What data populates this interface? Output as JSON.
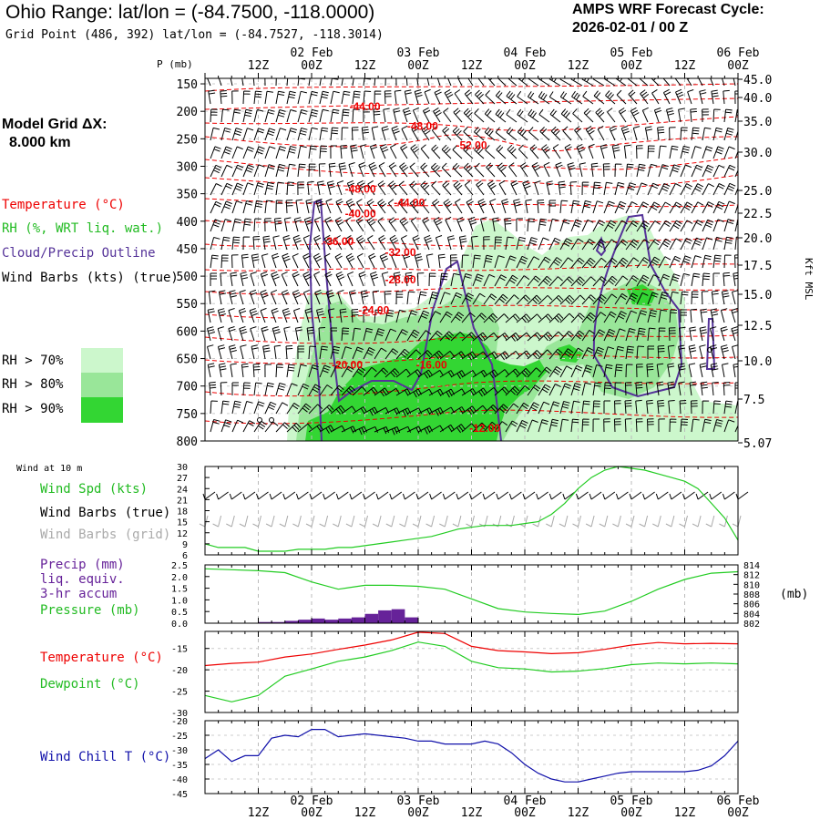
{
  "header": {
    "title": "Ohio Range:  lat/lon = (-84.7500, -118.0000)",
    "grid_point": "Grid Point (486, 392) lat/lon = (-84.7527, -118.3014)",
    "cycle_line1": "AMPS WRF Forecast Cycle:",
    "cycle_line2": "2026-02-01 / 00  Z"
  },
  "sidebar": {
    "grid_dx_line1": "Model Grid ΔX:",
    "grid_dx_line2": "8.000 km",
    "legend_temperature": "Temperature (°C)",
    "legend_rh": "RH (%, WRT liq. wat.)",
    "legend_cloud": "Cloud/Precip Outline",
    "legend_wind": "Wind Barbs (kts) (true)",
    "rh_keys": [
      "RH > 70%",
      "RH > 80%",
      "RH > 90%"
    ]
  },
  "colors": {
    "temperature": "#ee0000",
    "rh70": "#ccf7cc",
    "rh80": "#99e699",
    "rh90": "#33d633",
    "cloud": "#553399",
    "green_line": "#22cc22",
    "grid_barbs": "#aaaaaa",
    "precip": "#662299",
    "windchill": "#1111aa"
  },
  "time_axis": {
    "labels": [
      "12Z",
      "00Z",
      "12Z",
      "00Z",
      "12Z",
      "00Z",
      "12Z",
      "00Z",
      "12Z",
      "00Z"
    ],
    "dates": [
      "02 Feb",
      "03 Feb",
      "04 Feb",
      "05 Feb",
      "06 Feb"
    ]
  },
  "chart_data": [
    {
      "type": "heatmap",
      "panel": "cross-section",
      "y_axis_title": "P (mb)",
      "pressure_ticks": [
        "150",
        "200",
        "250",
        "300",
        "350",
        "400",
        "450",
        "500",
        "550",
        "600",
        "650",
        "700",
        "750",
        "800"
      ],
      "right_axis_title": "Kft MSL",
      "height_ticks": [
        "45.0",
        "40.0",
        "35.0",
        "30.0",
        "25.0",
        "22.5",
        "20.0",
        "17.5",
        "15.0",
        "12.5",
        "10.0",
        "7.5",
        "5.07"
      ],
      "temperature_labels": [
        {
          "text": "-44.00",
          "hour": 36,
          "p": 190
        },
        {
          "text": "-48.00",
          "hour": 49,
          "p": 225
        },
        {
          "text": "-52.00",
          "hour": 60,
          "p": 260
        },
        {
          "text": "-48.00",
          "hour": 35,
          "p": 340
        },
        {
          "text": "-44.00",
          "hour": 46,
          "p": 365
        },
        {
          "text": "-40.00",
          "hour": 35,
          "p": 385
        },
        {
          "text": "-36.00",
          "hour": 30,
          "p": 435
        },
        {
          "text": "-32.00",
          "hour": 44,
          "p": 455
        },
        {
          "text": "-28.00",
          "hour": 44,
          "p": 505
        },
        {
          "text": "-24.00",
          "hour": 38,
          "p": 560
        },
        {
          "text": "-20.00",
          "hour": 32,
          "p": 660
        },
        {
          "text": "-16.00",
          "hour": 51,
          "p": 660
        },
        {
          "text": "-12.00",
          "hour": 63,
          "p": 775
        }
      ]
    },
    {
      "type": "line",
      "panel": "wind",
      "title": "Wind at 10 m",
      "legend": [
        "Wind Spd (kts)",
        "Wind Barbs (true)",
        "Wind Barbs (grid)"
      ],
      "y_ticks": [
        "30",
        "27",
        "24",
        "21",
        "18",
        "15",
        "12",
        "9",
        "6"
      ],
      "ylim": [
        6,
        30
      ],
      "hours": [
        0,
        3,
        6,
        9,
        12,
        15,
        18,
        21,
        24,
        27,
        30,
        33,
        36,
        39,
        42,
        45,
        48,
        51,
        54,
        57,
        60,
        63,
        66,
        69,
        72,
        75,
        78,
        81,
        84,
        87,
        90,
        93,
        96,
        99,
        102,
        105,
        108,
        111,
        114,
        117,
        120
      ],
      "series": [
        {
          "name": "Wind Spd (kts)",
          "values": [
            9,
            8,
            8,
            8,
            7,
            7,
            7,
            7.5,
            7.5,
            7.5,
            8,
            8,
            8.5,
            9,
            9.5,
            10,
            10.5,
            11,
            12,
            13,
            13.5,
            14,
            14,
            14,
            14.5,
            15,
            17,
            20,
            24,
            27,
            29,
            30,
            29.5,
            29,
            28,
            27,
            26,
            24,
            20,
            16,
            10
          ]
        }
      ]
    },
    {
      "type": "bar",
      "panel": "precip-pressure",
      "legend": [
        "Precip (mm)",
        "liq. equiv.",
        "3-hr accum",
        "Pressure (mb)"
      ],
      "y_ticks_left": [
        "2.5",
        "2.0",
        "1.5",
        "1.0",
        "0.5",
        "0.0"
      ],
      "ylim_left": [
        0,
        2.5
      ],
      "y_ticks_right": [
        "814",
        "812",
        "810",
        "808",
        "806",
        "804",
        "802"
      ],
      "ylim_right": [
        802,
        814
      ],
      "right_axis_title": "(mb)",
      "precip_hours": [
        15,
        18,
        21,
        24,
        27,
        30,
        33,
        36,
        39,
        42,
        45,
        48
      ],
      "precip_values": [
        0.05,
        0.05,
        0.1,
        0.15,
        0.2,
        0.15,
        0.2,
        0.25,
        0.4,
        0.55,
        0.6,
        0.25
      ],
      "pressure_hours": [
        0,
        6,
        12,
        18,
        24,
        30,
        36,
        42,
        48,
        54,
        60,
        66,
        72,
        78,
        84,
        90,
        96,
        102,
        108,
        114,
        120
      ],
      "pressure_values": [
        813.2,
        813.0,
        812.8,
        812.4,
        810.5,
        809.0,
        809.8,
        809.8,
        809.6,
        809.0,
        807.0,
        805.0,
        804.3,
        804.0,
        803.8,
        804.5,
        806.5,
        809.0,
        811.0,
        812.3,
        812.6
      ]
    },
    {
      "type": "line",
      "panel": "temperature",
      "legend": [
        "Temperature (°C)",
        "Dewpoint (°C)"
      ],
      "y_ticks": [
        "-15",
        "-20",
        "-25",
        "-30"
      ],
      "ylim": [
        -30,
        -11
      ],
      "hours": [
        0,
        6,
        12,
        18,
        24,
        30,
        36,
        42,
        48,
        54,
        60,
        66,
        72,
        78,
        84,
        90,
        96,
        102,
        108,
        114,
        120
      ],
      "series": [
        {
          "name": "Temperature (°C)",
          "values": [
            -19.0,
            -18.5,
            -18.2,
            -17.0,
            -16.3,
            -15.2,
            -14.2,
            -13.0,
            -11.2,
            -11.5,
            -14.5,
            -15.5,
            -15.8,
            -16.2,
            -16.0,
            -15.2,
            -14.2,
            -13.6,
            -13.9,
            -13.8,
            -13.9
          ]
        },
        {
          "name": "Dewpoint (°C)",
          "values": [
            -26.0,
            -27.5,
            -26.0,
            -21.5,
            -19.8,
            -18.0,
            -17.0,
            -15.5,
            -13.5,
            -14.5,
            -18.0,
            -19.5,
            -19.8,
            -20.5,
            -20.3,
            -19.7,
            -18.8,
            -18.4,
            -18.6,
            -18.4,
            -18.6
          ]
        }
      ]
    },
    {
      "type": "line",
      "panel": "wind-chill",
      "legend": [
        "Wind Chill T (°C)"
      ],
      "y_ticks": [
        "-20",
        "-25",
        "-30",
        "-35",
        "-40",
        "-45"
      ],
      "ylim": [
        -45,
        -20
      ],
      "hours": [
        0,
        3,
        6,
        9,
        12,
        15,
        18,
        21,
        24,
        27,
        30,
        33,
        36,
        39,
        42,
        45,
        48,
        51,
        54,
        57,
        60,
        63,
        66,
        69,
        72,
        75,
        78,
        81,
        84,
        87,
        90,
        93,
        96,
        99,
        102,
        105,
        108,
        111,
        114,
        117,
        120
      ],
      "series": [
        {
          "name": "Wind Chill T (°C)",
          "values": [
            -33,
            -30,
            -34,
            -32,
            -32,
            -26,
            -25,
            -25.5,
            -23,
            -23,
            -25.5,
            -25,
            -24.5,
            -25,
            -25.5,
            -26,
            -27,
            -27,
            -28,
            -28,
            -28,
            -27,
            -28,
            -31,
            -35,
            -38,
            -40,
            -41,
            -41,
            -40,
            -39,
            -38,
            -37.5,
            -37.5,
            -37.5,
            -37.5,
            -37.5,
            -37,
            -35.5,
            -32,
            -27
          ]
        }
      ]
    }
  ]
}
